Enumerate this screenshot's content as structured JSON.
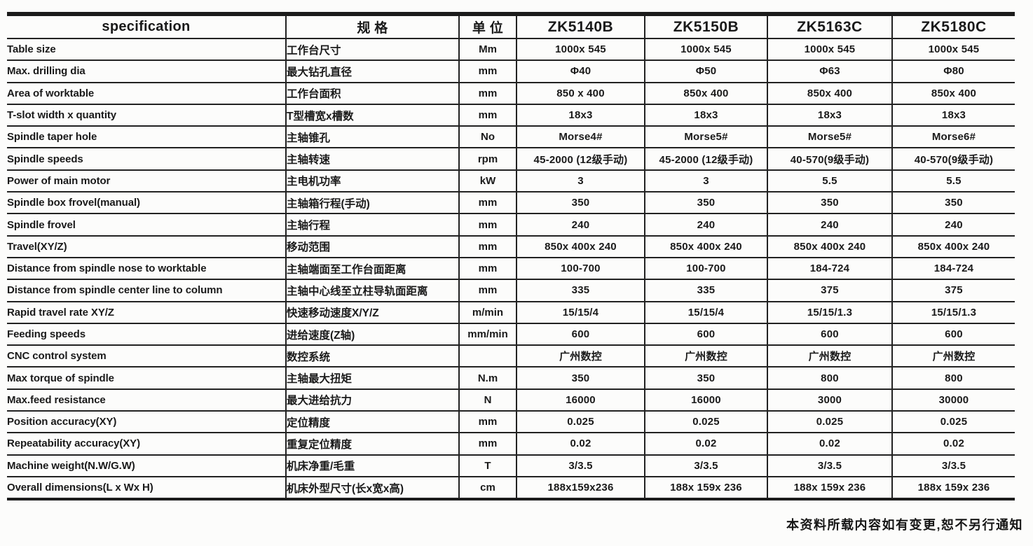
{
  "table": {
    "headers": [
      "specification",
      "规 格",
      "单 位",
      "ZK5140B",
      "ZK5150B",
      "ZK5163C",
      "ZK5180C"
    ],
    "rows": [
      {
        "en": "Table size",
        "cn": "工作台尺寸",
        "unit": "Mm",
        "values": [
          "1000x 545",
          "1000x 545",
          "1000x 545",
          "1000x 545"
        ]
      },
      {
        "en": "Max. drilling dia",
        "cn": "最大钻孔直径",
        "unit": "mm",
        "values": [
          "Φ40",
          "Φ50",
          "Φ63",
          "Φ80"
        ]
      },
      {
        "en": "Area of worktable",
        "cn": "工作台面积",
        "unit": "mm",
        "values": [
          "850 x 400",
          "850x 400",
          "850x 400",
          "850x 400"
        ]
      },
      {
        "en": "T-slot width x quantity",
        "cn": "T型槽宽x槽数",
        "unit": "mm",
        "values": [
          "18x3",
          "18x3",
          "18x3",
          "18x3"
        ]
      },
      {
        "en": "Spindle taper hole",
        "cn": "主轴锥孔",
        "unit": "No",
        "values": [
          "Morse4#",
          "Morse5#",
          "Morse5#",
          "Morse6#"
        ]
      },
      {
        "en": "Spindle speeds",
        "cn": "主轴转速",
        "unit": "rpm",
        "values": [
          "45-2000 (12级手动)",
          "45-2000 (12级手动)",
          "40-570(9级手动)",
          "40-570(9级手动)"
        ]
      },
      {
        "en": "Power of main motor",
        "cn": "主电机功率",
        "unit": "kW",
        "values": [
          "3",
          "3",
          "5.5",
          "5.5"
        ]
      },
      {
        "en": "Spindle box frovel(manual)",
        "cn": "主轴箱行程(手动)",
        "unit": "mm",
        "values": [
          "350",
          "350",
          "350",
          "350"
        ]
      },
      {
        "en": "Spindle frovel",
        "cn": "主轴行程",
        "unit": "mm",
        "values": [
          "240",
          "240",
          "240",
          "240"
        ]
      },
      {
        "en": "Travel(XY/Z)",
        "cn": "移动范围",
        "unit": "mm",
        "values": [
          "850x 400x 240",
          "850x 400x 240",
          "850x 400x 240",
          "850x 400x 240"
        ]
      },
      {
        "en": "Distance from spindle nose to worktable",
        "cn": "主轴端面至工作台面距离",
        "unit": "mm",
        "values": [
          "100-700",
          "100-700",
          "184-724",
          "184-724"
        ]
      },
      {
        "en": "Distance from spindle center line to column",
        "cn": "主轴中心线至立柱导轨面距离",
        "unit": "mm",
        "values": [
          "335",
          "335",
          "375",
          "375"
        ]
      },
      {
        "en": "Rapid travel rate XY/Z",
        "cn": "快速移动速度X/Y/Z",
        "unit": "m/min",
        "values": [
          "15/15/4",
          "15/15/4",
          "15/15/1.3",
          "15/15/1.3"
        ]
      },
      {
        "en": "Feeding speeds",
        "cn": "进给速度(Z轴)",
        "unit": "mm/min",
        "values": [
          "600",
          "600",
          "600",
          "600"
        ]
      },
      {
        "en": "CNC control system",
        "cn": "数控系统",
        "unit": "",
        "values": [
          "广州数控",
          "广州数控",
          "广州数控",
          "广州数控"
        ]
      },
      {
        "en": "Max torque of spindle",
        "cn": "主轴最大扭矩",
        "unit": "N.m",
        "values": [
          "350",
          "350",
          "800",
          "800"
        ]
      },
      {
        "en": "Max.feed resistance",
        "cn": "最大进给抗力",
        "unit": "N",
        "values": [
          "16000",
          "16000",
          "3000",
          "30000"
        ]
      },
      {
        "en": "Position accuracy(XY)",
        "cn": "定位精度",
        "unit": "mm",
        "values": [
          "0.025",
          "0.025",
          "0.025",
          "0.025"
        ]
      },
      {
        "en": "Repeatability accuracy(XY)",
        "cn": "重复定位精度",
        "unit": "mm",
        "values": [
          "0.02",
          "0.02",
          "0.02",
          "0.02"
        ]
      },
      {
        "en": "Machine weight(N.W/G.W)",
        "cn": "机床净重/毛重",
        "unit": "T",
        "values": [
          "3/3.5",
          "3/3.5",
          "3/3.5",
          "3/3.5"
        ]
      },
      {
        "en": "Overall dimensions(L x Wx H)",
        "cn": "机床外型尺寸(长x宽x高)",
        "unit": "cm",
        "values": [
          "188x159x236",
          "188x 159x 236",
          "188x 159x 236",
          "188x 159x 236"
        ]
      }
    ]
  },
  "footer": {
    "note": "本资料所载内容如有变更,恕不另行通知"
  }
}
